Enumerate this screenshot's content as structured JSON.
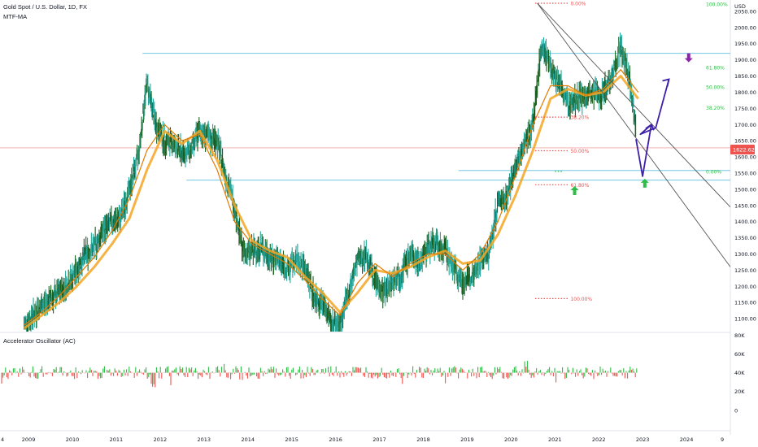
{
  "chart_data": {
    "type": "line",
    "title": "Gold Spot / U.S. Dollar, 1D, FX",
    "indicator_label": "MTF-MA",
    "currency_label": "USD",
    "last_price_label": "1622.62",
    "y_range": [
      1060,
      2080
    ],
    "y_ticks": [
      1100,
      1150,
      1200,
      1250,
      1300,
      1350,
      1400,
      1450,
      1500,
      1550,
      1600,
      1650,
      1700,
      1750,
      1800,
      1850,
      1900,
      1950,
      2000,
      2050
    ],
    "y_tick_labels": [
      "1100.00",
      "1150.00",
      "1200.00",
      "1250.00",
      "1300.00",
      "1350.00",
      "1400.00",
      "1450.00",
      "1500.00",
      "1550.00",
      "1600.00",
      "1650.00",
      "1700.00",
      "1750.00",
      "1800.00",
      "1850.00",
      "1900.00",
      "1950.00",
      "2000.00",
      "2050.00"
    ],
    "x_range": [
      2008.35,
      2025.0
    ],
    "x_ticks": [
      2009,
      2010,
      2011,
      2012,
      2013,
      2014,
      2015,
      2016,
      2017,
      2018,
      2019,
      2020,
      2021,
      2022,
      2023,
      2024
    ],
    "x_tick_labels": [
      "2009",
      "2010",
      "2011",
      "2012",
      "2013",
      "2014",
      "2015",
      "2016",
      "2017",
      "2018",
      "2019",
      "2020",
      "2021",
      "2022",
      "2023",
      "2024"
    ],
    "x_edge_labels": [
      "4",
      "9"
    ],
    "series": [
      {
        "type": "candles",
        "color": "#26a69a",
        "x": [
          2008.9,
          2009.1,
          2009.3,
          2009.5,
          2009.7,
          2009.9,
          2010.1,
          2010.3,
          2010.5,
          2010.7,
          2010.9,
          2011.1,
          2011.3,
          2011.5,
          2011.7,
          2011.9,
          2012.1,
          2012.3,
          2012.5,
          2012.7,
          2012.9,
          2013.1,
          2013.3,
          2013.5,
          2013.7,
          2013.9,
          2014.1,
          2014.3,
          2014.5,
          2014.7,
          2014.9,
          2015.1,
          2015.3,
          2015.5,
          2015.7,
          2015.9,
          2016.1,
          2016.3,
          2016.5,
          2016.7,
          2016.9,
          2017.1,
          2017.3,
          2017.5,
          2017.7,
          2017.9,
          2018.1,
          2018.3,
          2018.5,
          2018.7,
          2018.9,
          2019.1,
          2019.3,
          2019.5,
          2019.7,
          2019.9,
          2020.1,
          2020.3,
          2020.5,
          2020.7,
          2020.9,
          2021.1,
          2021.3,
          2021.5,
          2021.7,
          2021.9,
          2022.1,
          2022.3,
          2022.5,
          2022.7,
          2022.85
        ],
        "y": [
          1080,
          1110,
          1140,
          1160,
          1180,
          1210,
          1250,
          1300,
          1320,
          1370,
          1400,
          1410,
          1500,
          1600,
          1830,
          1700,
          1650,
          1640,
          1610,
          1620,
          1680,
          1660,
          1650,
          1540,
          1450,
          1300,
          1310,
          1320,
          1290,
          1280,
          1250,
          1280,
          1260,
          1170,
          1150,
          1090,
          1080,
          1180,
          1280,
          1300,
          1220,
          1180,
          1220,
          1240,
          1300,
          1270,
          1320,
          1330,
          1310,
          1260,
          1210,
          1230,
          1280,
          1300,
          1460,
          1480,
          1560,
          1640,
          1700,
          1950,
          1880,
          1830,
          1760,
          1780,
          1790,
          1790,
          1800,
          1850,
          1940,
          1840,
          1700
        ]
      },
      {
        "type": "line",
        "color": "#f5a623",
        "x": [
          2008.9,
          2009.3,
          2009.7,
          2010.1,
          2010.5,
          2010.9,
          2011.3,
          2011.7,
          2012.1,
          2012.5,
          2012.9,
          2013.3,
          2013.7,
          2014.1,
          2014.5,
          2014.9,
          2015.3,
          2015.7,
          2016.1,
          2016.5,
          2016.9,
          2017.3,
          2017.7,
          2018.1,
          2018.5,
          2018.9,
          2019.3,
          2019.7,
          2020.1,
          2020.5,
          2020.9,
          2021.3,
          2021.7,
          2022.1,
          2022.5,
          2022.9
        ],
        "y": [
          1070,
          1110,
          1150,
          1200,
          1260,
          1330,
          1410,
          1560,
          1680,
          1640,
          1680,
          1590,
          1450,
          1340,
          1310,
          1290,
          1230,
          1180,
          1120,
          1180,
          1250,
          1240,
          1260,
          1290,
          1310,
          1270,
          1280,
          1360,
          1480,
          1620,
          1780,
          1810,
          1790,
          1800,
          1850,
          1780
        ]
      },
      {
        "type": "line",
        "color": "#e07b00",
        "x": [
          2008.9,
          2009.3,
          2009.7,
          2010.1,
          2010.5,
          2010.9,
          2011.3,
          2011.7,
          2012.1,
          2012.5,
          2012.9,
          2013.3,
          2013.7,
          2014.1,
          2014.5,
          2014.9,
          2015.3,
          2015.7,
          2016.1,
          2016.5,
          2016.9,
          2017.3,
          2017.7,
          2018.1,
          2018.5,
          2018.9,
          2019.3,
          2019.7,
          2020.1,
          2020.5,
          2020.9,
          2021.3,
          2021.7,
          2022.1,
          2022.5,
          2022.9
        ],
        "y": [
          1080,
          1120,
          1170,
          1230,
          1290,
          1370,
          1470,
          1620,
          1700,
          1650,
          1670,
          1560,
          1400,
          1330,
          1300,
          1270,
          1220,
          1160,
          1110,
          1210,
          1270,
          1230,
          1270,
          1300,
          1300,
          1250,
          1300,
          1400,
          1540,
          1700,
          1820,
          1820,
          1790,
          1810,
          1870,
          1800
        ]
      }
    ],
    "horizontal_lines": [
      {
        "price": 1920,
        "color": "#5bc0de",
        "x_start": 2011.6
      },
      {
        "price": 1558,
        "color": "#5bc0de",
        "x_start": 2018.8
      },
      {
        "price": 1528,
        "color": "#5bc0de",
        "x_start": 2012.6
      },
      {
        "price": 1628,
        "color": "#f4a6a6",
        "x_start": 2008.35
      }
    ],
    "fib_retracement": {
      "color": "#ef5350",
      "x_start": 2020.55,
      "x_end": 2021.3,
      "levels": [
        {
          "price": 2075,
          "label": "0.00%"
        },
        {
          "price": 1723,
          "label": "38.20%"
        },
        {
          "price": 1619,
          "label": "50.00%"
        },
        {
          "price": 1514,
          "label": "61.80%"
        },
        {
          "price": 1162,
          "label": "100.00%"
        }
      ]
    },
    "fib_extension": {
      "color": "#2ebd46",
      "x_start": 2022.3,
      "x_end": 2022.9,
      "levels": [
        {
          "price": 2072,
          "label": "100.00%"
        },
        {
          "price": 1876,
          "label": "61.80%"
        },
        {
          "price": 1816,
          "label": "50.00%"
        },
        {
          "price": 1752,
          "label": "38.20%"
        },
        {
          "price": 1555,
          "label": "0.00%"
        }
      ]
    },
    "trend_lines": [
      {
        "color": "#555555",
        "points": [
          [
            2020.6,
            2075
          ],
          [
            2025.0,
            1445
          ]
        ]
      },
      {
        "color": "#555555",
        "points": [
          [
            2020.6,
            2075
          ],
          [
            2025.0,
            1260
          ]
        ]
      }
    ],
    "projection_path": {
      "color": "#3e1fa8",
      "points": [
        [
          2022.85,
          1655
        ],
        [
          2023.0,
          1540
        ],
        [
          2023.2,
          1700
        ],
        [
          2022.95,
          1670
        ],
        [
          2023.3,
          1690
        ],
        [
          2023.6,
          1840
        ]
      ]
    },
    "markers": [
      {
        "kind": "arrow-up",
        "color": "#2ebd46",
        "x": 2021.45,
        "price": 1497
      },
      {
        "kind": "arrow-up",
        "color": "#2ebd46",
        "x": 2023.05,
        "price": 1520
      },
      {
        "kind": "arrow-down",
        "color": "#8e24aa",
        "x": 2024.05,
        "price": 1905
      }
    ],
    "oscillator": {
      "title": "Accelerator Oscillator (AC)",
      "y_ticks": [
        0,
        20000,
        40000,
        60000,
        80000
      ],
      "y_tick_labels": [
        "0",
        "20K",
        "40K",
        "60K",
        "80K"
      ],
      "y_range": [
        -20000,
        82000
      ],
      "baseline": 40000,
      "positive_color": "#2ebd46",
      "negative_color": "#ef5350"
    }
  }
}
